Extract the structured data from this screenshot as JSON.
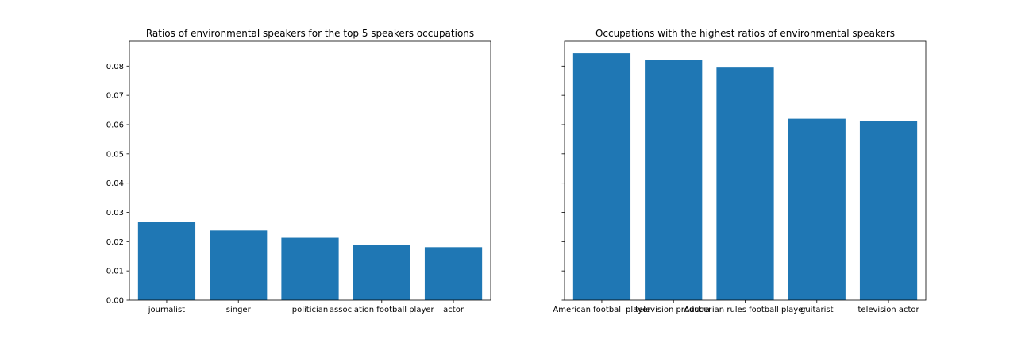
{
  "chart_data": [
    {
      "type": "bar",
      "title": "Ratios of environmental speakers for the top 5 speakers occupations",
      "categories": [
        "journalist",
        "singer",
        "politician",
        "association football player",
        "actor"
      ],
      "values": [
        0.0268,
        0.0238,
        0.0213,
        0.019,
        0.0181
      ],
      "ylim": [
        0,
        0.0885
      ],
      "yticks": [
        "0.00",
        "0.01",
        "0.02",
        "0.03",
        "0.04",
        "0.05",
        "0.06",
        "0.07",
        "0.08"
      ],
      "xlabel": "",
      "ylabel": "",
      "color": "#1f77b4",
      "grid": false
    },
    {
      "type": "bar",
      "title": "Occupations with the highest ratios of environmental speakers",
      "categories": [
        "American football player",
        "television producer",
        "Australian rules football player",
        "guitarist",
        "television actor"
      ],
      "values": [
        0.0844,
        0.0822,
        0.0795,
        0.062,
        0.0611
      ],
      "ylim": [
        0,
        0.0885
      ],
      "yticks": [
        "0.00",
        "0.01",
        "0.02",
        "0.03",
        "0.04",
        "0.05",
        "0.06",
        "0.07",
        "0.08"
      ],
      "show_ytick_labels": false,
      "xlabel": "",
      "ylabel": "",
      "color": "#1f77b4",
      "grid": false
    }
  ]
}
